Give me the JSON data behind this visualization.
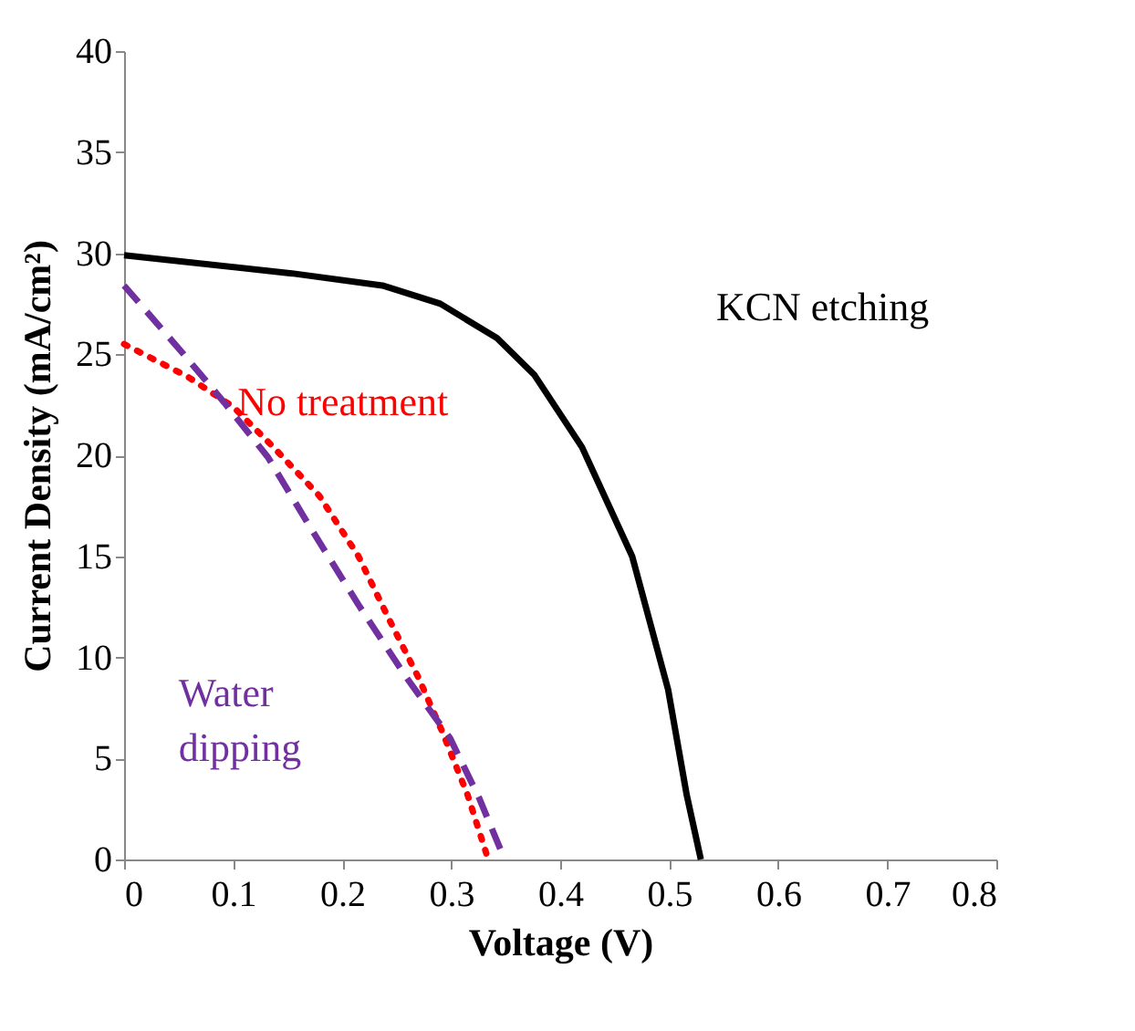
{
  "chart_data": {
    "type": "line",
    "xlabel": "Voltage (V)",
    "ylabel": "Current Density (mA/cm²)",
    "xlim": [
      0,
      0.8
    ],
    "xticks": [
      0,
      0.1,
      0.2,
      0.3,
      0.4,
      0.5,
      0.6,
      0.7,
      0.8
    ],
    "ylim": [
      0,
      40
    ],
    "yticks": [
      0,
      5,
      10,
      15,
      20,
      25,
      30,
      35,
      40
    ],
    "grid": false,
    "marker": "none",
    "series": [
      {
        "name": "KCN etching",
        "color": "#000000",
        "line_style": "solid",
        "x": [
          0,
          0.154,
          0.237,
          0.29,
          0.342,
          0.376,
          0.42,
          0.466,
          0.499,
          0.516,
          0.529
        ],
        "values": [
          29.9,
          29.0,
          28.4,
          27.5,
          25.8,
          24.0,
          20.4,
          15.0,
          8.4,
          3.2,
          0
        ]
      },
      {
        "name": "No treatment",
        "color": "#ff0000",
        "line_style": "dotted",
        "x": [
          0,
          0.058,
          0.1,
          0.137,
          0.179,
          0.215,
          0.242,
          0.27,
          0.292,
          0.315,
          0.334
        ],
        "values": [
          25.5,
          23.9,
          22.4,
          20.4,
          18.0,
          15.0,
          12.0,
          9.0,
          6.3,
          3.2,
          0
        ]
      },
      {
        "name": "Water dipping",
        "color": "#7030a0",
        "line_style": "dashed",
        "x": [
          0,
          0.053,
          0.092,
          0.132,
          0.17,
          0.215,
          0.259,
          0.299,
          0.326,
          0.349
        ],
        "values": [
          28.4,
          25.1,
          22.6,
          19.9,
          16.5,
          12.6,
          9.0,
          6.0,
          3.0,
          0
        ]
      }
    ]
  }
}
